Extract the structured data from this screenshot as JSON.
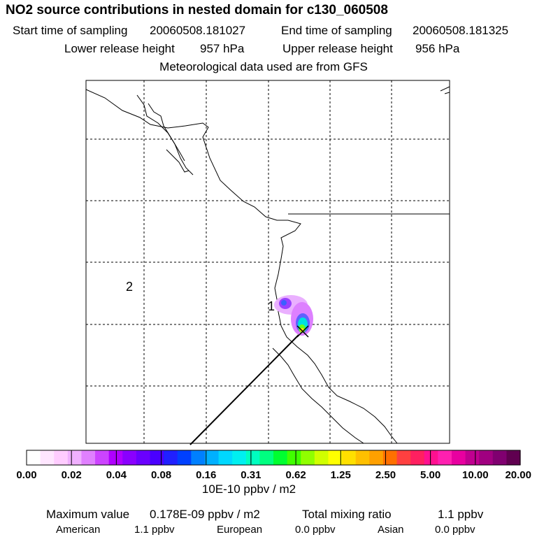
{
  "header": {
    "title": "NO2 source contributions in nested domain for c130_060508",
    "start_label": "Start time of sampling",
    "start_value": "20060508.181027",
    "end_label": "End time of sampling",
    "end_value": "20060508.181325",
    "lower_label": "Lower release height",
    "lower_value": "957 hPa",
    "upper_label": "Upper release height",
    "upper_value": "956 hPa",
    "met_line": "Meteorological data used are from GFS"
  },
  "map": {
    "marker_1": "1",
    "marker_2": "2",
    "plume_colors": [
      "#e8a0ff",
      "#c040ff",
      "#6060ff",
      "#00e0e0",
      "#60ff00",
      "#ffe000"
    ]
  },
  "colorbar": {
    "colors": [
      "#ffffff",
      "#ffe6ff",
      "#ffccff",
      "#f0b0ff",
      "#e080ff",
      "#cc44ff",
      "#b000ff",
      "#8a00ff",
      "#6a00ff",
      "#4a00ff",
      "#2020ff",
      "#0040ff",
      "#0080ff",
      "#00b0ff",
      "#00d8ff",
      "#00f0f0",
      "#00ffc0",
      "#00ff80",
      "#00ff30",
      "#40ff00",
      "#90ff00",
      "#d0ff00",
      "#ffff00",
      "#ffe000",
      "#ffc000",
      "#ffa000",
      "#ff7000",
      "#ff4040",
      "#ff2060",
      "#ff1090",
      "#ff20b0",
      "#e800a0",
      "#c00090",
      "#a00080",
      "#800070",
      "#600050"
    ],
    "ticks": [
      "0.00",
      "0.02",
      "0.04",
      "0.08",
      "0.16",
      "0.31",
      "0.62",
      "1.25",
      "2.50",
      "5.00",
      "10.00",
      "20.00"
    ],
    "unit": "10E-10 ppbv / m2"
  },
  "footer": {
    "max_label": "Maximum value",
    "max_value": "0.178E-09 ppbv / m2",
    "total_label": "Total mixing ratio",
    "total_value": "1.1 ppbv",
    "american_label": "American",
    "american_value": "1.1 ppbv",
    "european_label": "European",
    "european_value": "0.0 ppbv",
    "asian_label": "Asian",
    "asian_value": "0.0 ppbv"
  }
}
